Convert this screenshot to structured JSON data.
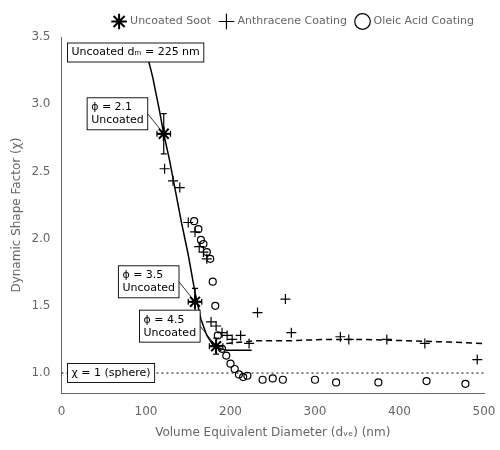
{
  "chart_data": {
    "type": "scatter",
    "title": "",
    "xlabel": "Volume Equivalent Diameter (dᵥₑ) (nm)",
    "ylabel": "Dynamic Shape Factor (χ)",
    "xlim": [
      0,
      500
    ],
    "ylim": [
      0.85,
      3.5
    ],
    "xticks": [
      0,
      100,
      200,
      300,
      400,
      500
    ],
    "yticks": [
      {
        "value": 1.0,
        "label": "1.0"
      },
      1.5,
      {
        "value": 2.0,
        "label": "2.0"
      },
      2.5,
      {
        "value": 3.0,
        "label": "3.0"
      },
      3.5
    ],
    "grid": false,
    "legend": "upper right",
    "series": [
      {
        "type": "line",
        "line_style": "solid",
        "color": "#000000",
        "x": [
          100,
          108,
          116,
          121,
          128,
          135,
          142,
          150,
          158,
          165,
          172,
          180,
          188,
          196,
          205,
          215,
          225
        ],
        "values": [
          3.4,
          3.2,
          2.95,
          2.78,
          2.58,
          2.35,
          2.12,
          1.88,
          1.6,
          1.4,
          1.28,
          1.2,
          1.18,
          1.17,
          1.17,
          1.17,
          1.17
        ]
      },
      {
        "type": "line",
        "line_style": "dashed",
        "color": "#000000",
        "x": [
          195,
          230,
          270,
          310,
          360,
          410,
          460,
          500
        ],
        "values": [
          1.22,
          1.24,
          1.24,
          1.25,
          1.25,
          1.24,
          1.23,
          1.22
        ]
      },
      {
        "type": "hline",
        "line_style": "dotted",
        "color": "#000000",
        "values": [
          1.0
        ]
      },
      {
        "name": "Uncoated Soot",
        "type": "scatter",
        "marker": "star",
        "color": "#000000",
        "x": [
          121,
          158,
          183
        ],
        "values": [
          2.78,
          1.53,
          1.2
        ],
        "xerr": [
          8,
          8,
          8
        ],
        "yerr": [
          0.15,
          0.1,
          0.06
        ]
      },
      {
        "name": "Anthracene Coating",
        "type": "scatter",
        "marker": "plus",
        "color": "#000000",
        "x": [
          122,
          132,
          140,
          150,
          158,
          163,
          168,
          172,
          177,
          183,
          190,
          196,
          202,
          212,
          222,
          232,
          265,
          272,
          330,
          340,
          385,
          430,
          492
        ],
        "values": [
          2.52,
          2.43,
          2.38,
          2.12,
          2.05,
          1.94,
          1.9,
          1.85,
          1.38,
          1.35,
          1.3,
          1.28,
          1.25,
          1.28,
          1.22,
          1.45,
          1.55,
          1.3,
          1.27,
          1.25,
          1.25,
          1.22,
          1.1
        ]
      },
      {
        "name": "Oleic Acid Coating",
        "type": "scatter",
        "marker": "open_circle",
        "color": "#000000",
        "x": [
          157,
          162,
          165,
          168,
          172,
          176,
          179,
          182,
          185,
          190,
          195,
          200,
          205,
          210,
          215,
          220,
          238,
          250,
          262,
          300,
          325,
          375,
          432,
          478
        ],
        "values": [
          2.13,
          2.07,
          1.99,
          1.96,
          1.9,
          1.85,
          1.68,
          1.5,
          1.28,
          1.18,
          1.13,
          1.07,
          1.03,
          0.99,
          0.97,
          0.98,
          0.95,
          0.96,
          0.95,
          0.95,
          0.93,
          0.93,
          0.94,
          0.92
        ]
      }
    ],
    "annotations": [
      {
        "text": "Uncoated dₘ = 225 nm"
      },
      {
        "text": "ϕ = 2.1\nUncoated",
        "x": 121,
        "y": 2.78
      },
      {
        "text": "ϕ = 3.5\nUncoated",
        "x": 158,
        "y": 1.53
      },
      {
        "text": "ϕ = 4.5\nUncoated",
        "x": 183,
        "y": 1.2
      },
      {
        "text": "χ = 1 (sphere)",
        "y": 1.0
      }
    ]
  }
}
